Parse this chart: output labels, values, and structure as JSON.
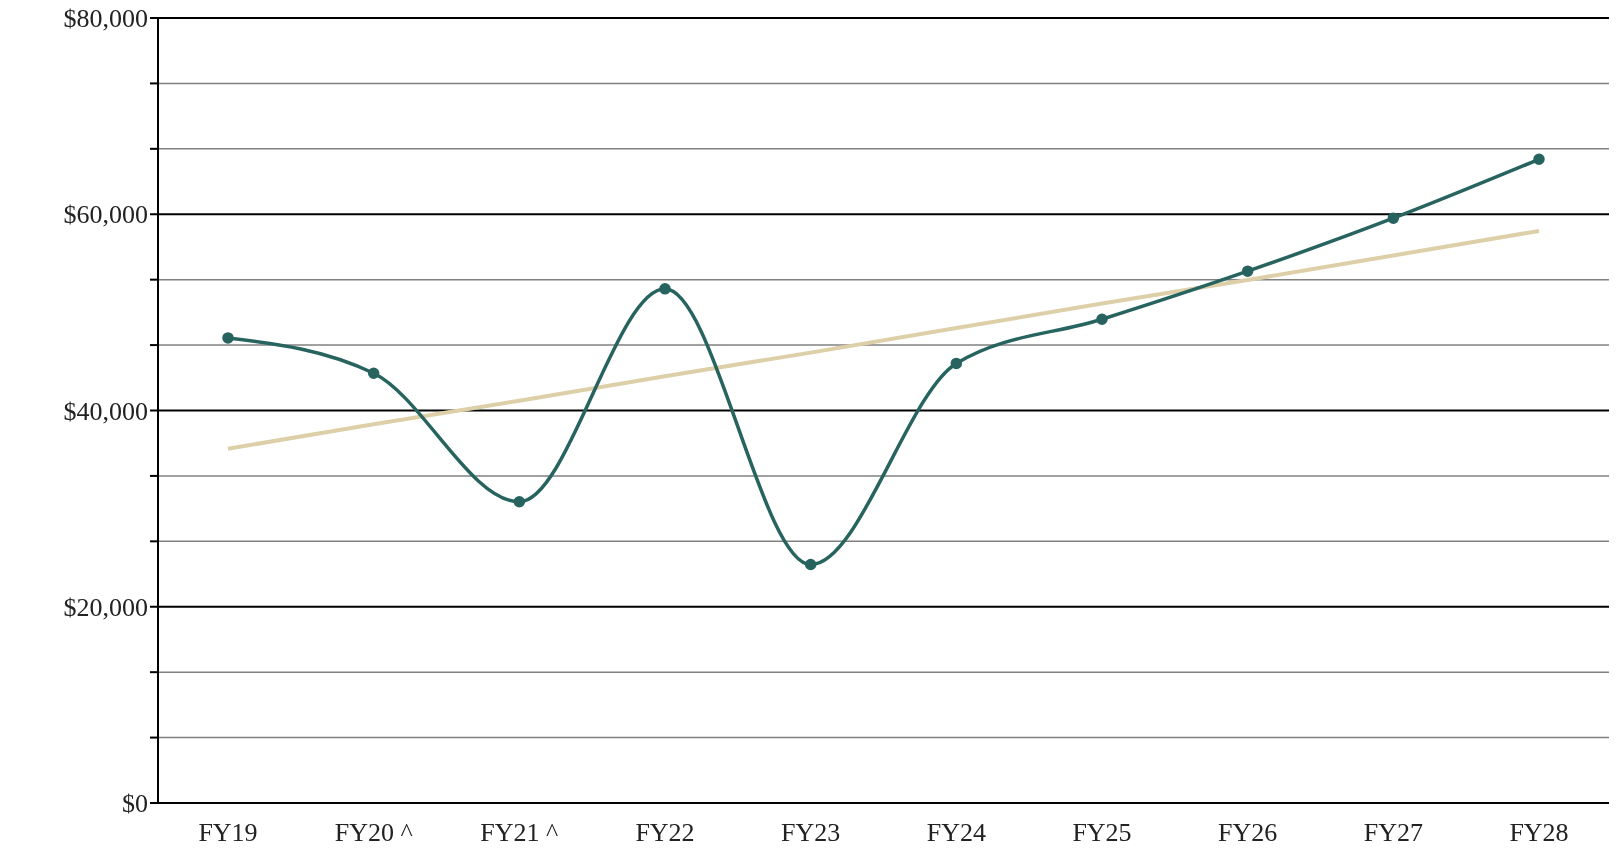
{
  "chart_data": {
    "type": "line",
    "categories": [
      "FY19",
      "FY20 ^",
      "FY21 ^",
      "FY22",
      "FY23",
      "FY24",
      "FY25",
      "FY26",
      "FY27",
      "FY28"
    ],
    "series": [
      {
        "color": "#ddd0a8",
        "marker": "none",
        "values": [
          36100,
          38600,
          41000,
          43500,
          45900,
          48400,
          50900,
          53300,
          55800,
          58300
        ]
      },
      {
        "color": "#27635f",
        "marker": "circle",
        "values": [
          47400,
          43800,
          30700,
          52400,
          24300,
          44800,
          49300,
          54200,
          59600,
          65600
        ]
      }
    ],
    "ylim": [
      0,
      80000
    ],
    "yticks": [
      {
        "value": 0,
        "label": "$0"
      },
      {
        "value": 6667,
        "label": null
      },
      {
        "value": 13333,
        "label": null
      },
      {
        "value": 20000,
        "label": "$20,000"
      },
      {
        "value": 26667,
        "label": null
      },
      {
        "value": 33333,
        "label": null
      },
      {
        "value": 40000,
        "label": "$40,000"
      },
      {
        "value": 46667,
        "label": null
      },
      {
        "value": 53333,
        "label": null
      },
      {
        "value": 60000,
        "label": "$60,000"
      },
      {
        "value": 66667,
        "label": null
      },
      {
        "value": 73333,
        "label": null
      },
      {
        "value": 80000,
        "label": "$80,000"
      }
    ],
    "grid": "y"
  }
}
